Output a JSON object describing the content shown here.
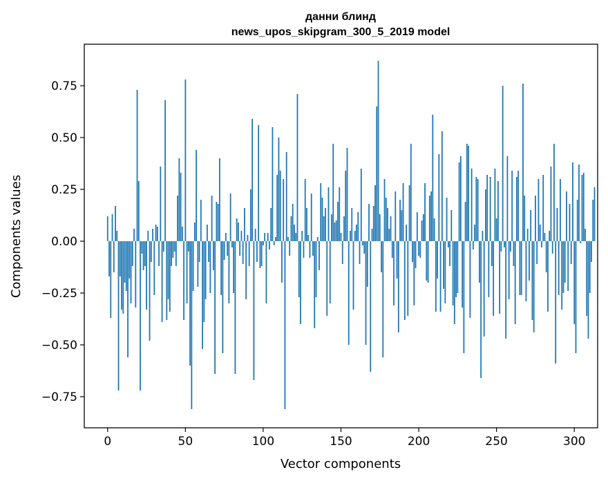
{
  "chart_data": {
    "type": "bar",
    "title": "данни блинд",
    "subtitle": "news_upos_skipgram_300_5_2019 model",
    "xlabel": "Vector components",
    "ylabel": "Components values",
    "xlim": [
      -15,
      315
    ],
    "ylim": [
      -0.9,
      0.95
    ],
    "xticks": [
      0,
      50,
      100,
      150,
      200,
      250,
      300
    ],
    "yticks": [
      -0.75,
      -0.5,
      -0.25,
      0.0,
      0.25,
      0.5,
      0.75
    ],
    "xtick_labels": [
      "0",
      "50",
      "100",
      "150",
      "200",
      "250",
      "300"
    ],
    "ytick_labels": [
      "−0.75",
      "−0.50",
      "−0.25",
      "0.00",
      "0.25",
      "0.50",
      "0.75"
    ],
    "bar_color": "#1f77b4",
    "grid": false,
    "x_start": 0,
    "values": [
      0.12,
      -0.17,
      -0.37,
      0.13,
      -0.15,
      0.17,
      0.05,
      -0.72,
      -0.17,
      -0.33,
      -0.35,
      -0.2,
      -0.24,
      -0.56,
      -0.18,
      -0.3,
      -0.12,
      0.06,
      -0.32,
      0.73,
      0.29,
      -0.72,
      -0.06,
      -0.14,
      -0.12,
      -0.33,
      0.05,
      -0.48,
      -0.1,
      0.06,
      -0.26,
      0.08,
      0.07,
      -0.12,
      0.36,
      -0.39,
      -0.05,
      0.68,
      -0.38,
      -0.28,
      -0.34,
      -0.12,
      -0.08,
      -0.05,
      -0.12,
      0.22,
      0.4,
      0.33,
      0.07,
      -0.38,
      0.78,
      -0.3,
      -0.05,
      -0.6,
      -0.81,
      -0.24,
      0.09,
      0.44,
      -0.22,
      -0.1,
      0.2,
      -0.52,
      -0.39,
      -0.28,
      0.08,
      -0.1,
      -0.25,
      0.22,
      -0.14,
      -0.64,
      0.19,
      0.18,
      0.4,
      -0.26,
      -0.54,
      -0.09,
      0.04,
      -0.07,
      -0.3,
      0.23,
      -0.03,
      -0.25,
      -0.64,
      0.11,
      0.09,
      -0.07,
      0.05,
      -0.11,
      0.16,
      -0.28,
      0.03,
      -0.12,
      0.25,
      0.59,
      -0.67,
      0.06,
      -0.1,
      0.56,
      -0.13,
      -0.12,
      -0.02,
      0.04,
      -0.3,
      0.04,
      -0.04,
      0.16,
      0.55,
      -0.02,
      0.02,
      0.32,
      0.5,
      0.34,
      -0.2,
      0.3,
      -0.81,
      0.43,
      0.02,
      -0.07,
      0.12,
      0.18,
      0.08,
      0.04,
      0.71,
      -0.27,
      -0.4,
      0.05,
      -0.08,
      0.3,
      0.16,
      0.03,
      -0.08,
      0.23,
      -0.07,
      -0.42,
      -0.27,
      0.02,
      -0.14,
      0.28,
      0.21,
      0.12,
      0.16,
      -0.36,
      0.26,
      -0.3,
      0.13,
      0.47,
      0.09,
      0.1,
      0.19,
      0.26,
      0.04,
      -0.11,
      0.12,
      0.34,
      0.45,
      -0.5,
      0.05,
      0.16,
      -0.33,
      0.05,
      0.08,
      0.14,
      -0.11,
      0.35,
      -0.02,
      -0.06,
      -0.5,
      -0.22,
      0.18,
      -0.63,
      0.06,
      0.17,
      0.27,
      0.65,
      0.87,
      0.13,
      -0.15,
      -0.56,
      0.3,
      0.21,
      0.16,
      0.06,
      0.12,
      -0.08,
      -0.31,
      0.24,
      -0.18,
      -0.44,
      0.2,
      0.15,
      0.28,
      -0.38,
      0.08,
      -0.36,
      0.27,
      0.47,
      -0.1,
      -0.31,
      -0.13,
      0.14,
      -0.07,
      -0.08,
      0.1,
      0.13,
      0.28,
      -0.19,
      -0.2,
      0.22,
      0.24,
      0.61,
      0.11,
      -0.34,
      -0.18,
      0.42,
      -0.34,
      0.53,
      -0.23,
      -0.3,
      0.21,
      -0.03,
      -0.12,
      0.15,
      -0.31,
      -0.4,
      -0.27,
      -0.25,
      0.38,
      0.41,
      -0.32,
      -0.54,
      0.19,
      0.47,
      0.46,
      -0.37,
      0.35,
      -0.04,
      0.08,
      0.31,
      0.3,
      -0.2,
      -0.66,
      0.05,
      -0.46,
      0.25,
      0.32,
      -0.27,
      0.31,
      -0.12,
      -0.36,
      0.35,
      0.11,
      0.29,
      -0.35,
      -0.05,
      0.75,
      -0.03,
      -0.47,
      0.41,
      -0.28,
      -0.05,
      0.34,
      -0.12,
      -0.4,
      0.31,
      0.34,
      -0.26,
      -0.26,
      0.76,
      0.22,
      -0.29,
      0.06,
      -0.19,
      0.15,
      -0.38,
      -0.44,
      0.22,
      -0.11,
      0.3,
      0.08,
      -0.03,
      0.32,
      0.04,
      -0.15,
      -0.34,
      0.05,
      0.36,
      -0.06,
      0.47,
      -0.59,
      0.16,
      -0.26,
      0.3,
      -0.33,
      -0.25,
      -0.2,
      0.24,
      -0.24,
      0.18,
      -0.11,
      0.38,
      -0.4,
      -0.54,
      0.2,
      0.37,
      -0.01,
      0.32,
      0.33,
      0.06,
      -0.36,
      -0.47,
      -0.25,
      -0.1,
      0.2,
      0.26
    ]
  }
}
